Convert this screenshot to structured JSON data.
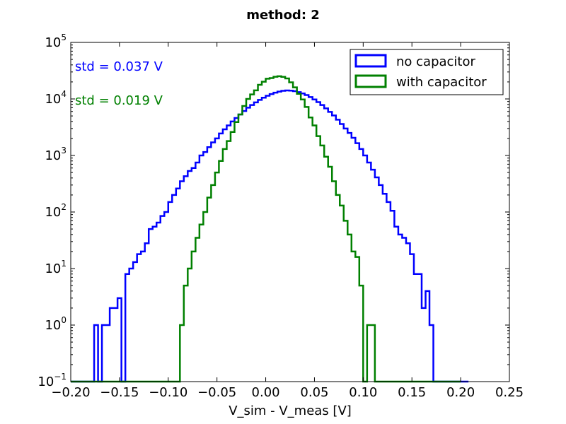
{
  "chart_data": {
    "type": "histogram-step",
    "title": "method: 2",
    "xlabel": "V_sim - V_meas [V]",
    "ylabel": "",
    "xlim": [
      -0.2,
      0.25
    ],
    "ylim": [
      0.1,
      100000
    ],
    "yscale": "log",
    "x_ticks": [
      "−0.20",
      "−0.15",
      "−0.10",
      "−0.05",
      "0.00",
      "0.05",
      "0.10",
      "0.15",
      "0.20",
      "0.25"
    ],
    "x_tick_values": [
      -0.2,
      -0.15,
      -0.1,
      -0.05,
      0.0,
      0.05,
      0.1,
      0.15,
      0.2,
      0.25
    ],
    "y_tick_exponents": [
      -1,
      0,
      1,
      2,
      3,
      4,
      5
    ],
    "y_tick_base": "10",
    "legend": {
      "placement": "top-right"
    },
    "annotations": [
      {
        "text": "std = 0.037 V",
        "color": "#0000ff"
      },
      {
        "text": "std = 0.019 V",
        "color": "#008000"
      }
    ],
    "series": [
      {
        "name": "no capacitor",
        "color": "#0000ff",
        "bin_edges": [
          -0.2,
          0.2
        ],
        "bin_width": 0.004,
        "counts": [
          0,
          0,
          0,
          0,
          0,
          0,
          1,
          0,
          1,
          1,
          2,
          2,
          3,
          0,
          8,
          10,
          13,
          18,
          20,
          28,
          50,
          55,
          65,
          85,
          100,
          150,
          200,
          260,
          350,
          430,
          530,
          600,
          750,
          1000,
          1150,
          1400,
          1700,
          2000,
          2450,
          2900,
          3400,
          4000,
          4600,
          5300,
          6100,
          7000,
          7800,
          8700,
          9600,
          10500,
          11400,
          12200,
          12900,
          13500,
          13900,
          14100,
          14000,
          13700,
          13200,
          12500,
          11700,
          10800,
          9800,
          8800,
          7800,
          6800,
          5900,
          5100,
          4300,
          3600,
          3000,
          2500,
          2050,
          1650,
          1300,
          1000,
          750,
          560,
          410,
          300,
          210,
          150,
          105,
          55,
          40,
          35,
          28,
          18,
          8,
          8,
          2,
          4,
          1,
          0,
          0,
          0,
          0,
          0,
          0,
          0,
          0,
          0
        ]
      },
      {
        "name": "with capacitor",
        "color": "#008000",
        "bin_edges": [
          -0.2,
          0.2
        ],
        "bin_width": 0.004,
        "counts": [
          0,
          0,
          0,
          0,
          0,
          0,
          0,
          0,
          0,
          0,
          0,
          0,
          0,
          0,
          0,
          0,
          0,
          0,
          0,
          0,
          0,
          0,
          0,
          0,
          0,
          0,
          0,
          0,
          1,
          5,
          10,
          20,
          35,
          60,
          100,
          180,
          300,
          500,
          800,
          1300,
          1800,
          2600,
          3900,
          5300,
          7500,
          10000,
          12000,
          14200,
          17800,
          20200,
          22800,
          23400,
          24700,
          25200,
          24600,
          23000,
          19700,
          16000,
          12300,
          9800,
          7200,
          4700,
          3400,
          2200,
          1500,
          950,
          630,
          350,
          200,
          130,
          70,
          40,
          20,
          16,
          5,
          0,
          1,
          1,
          0,
          0,
          0,
          0,
          0,
          0,
          0,
          0,
          0,
          0,
          0,
          0,
          0,
          0,
          0,
          0,
          0,
          0,
          0,
          0,
          0,
          0
        ]
      }
    ]
  }
}
